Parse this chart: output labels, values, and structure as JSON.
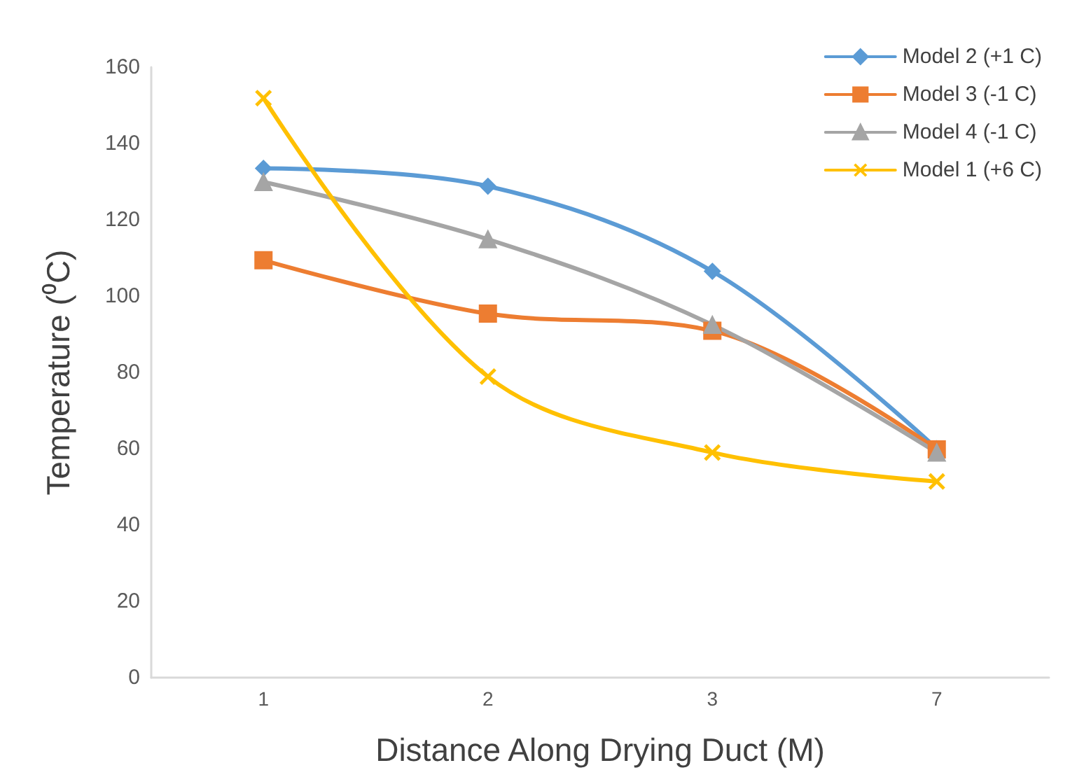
{
  "chart_data": {
    "type": "line",
    "xlabel": "Distance Along Drying Duct (M)",
    "ylabel": "Temperature (⁰C)",
    "categories": [
      "1",
      "2",
      "3",
      "7"
    ],
    "series": [
      {
        "name": "Model 2 (+1 C)",
        "color": "#5b9bd5",
        "marker": "diamond",
        "values": [
          133.5,
          128.8,
          106.5,
          60
        ]
      },
      {
        "name": "Model 3 (-1 C)",
        "color": "#ed7d31",
        "marker": "square",
        "values": [
          109.4,
          95.4,
          90.9,
          59.8
        ]
      },
      {
        "name": "Model 4 (-1 C)",
        "color": "#a5a5a5",
        "marker": "triangle",
        "values": [
          129.9,
          114.9,
          92.5,
          59
        ]
      },
      {
        "name": "Model 1 (+6 C)",
        "color": "#ffc000",
        "marker": "cross",
        "values": [
          151.9,
          78.9,
          59,
          51.4
        ]
      }
    ],
    "ylim": [
      0,
      160
    ],
    "yticks": [
      0,
      20,
      40,
      60,
      80,
      100,
      120,
      140,
      160
    ],
    "grid": false,
    "legend": "top right",
    "line_style": "solid"
  }
}
